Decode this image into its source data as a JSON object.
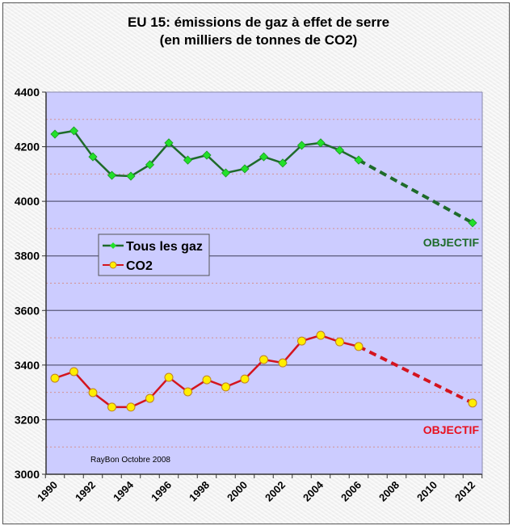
{
  "chart_data": {
    "type": "line",
    "title": "EU 15: émissions de gaz à effet de serre",
    "subtitle": "(en milliers de tonnes de CO2)",
    "xlabel": "",
    "ylabel": "",
    "xlim": [
      1990,
      2012
    ],
    "ylim": [
      3000,
      4400
    ],
    "y_ticks": [
      3000,
      3200,
      3400,
      3600,
      3800,
      4000,
      4200,
      4400
    ],
    "y_tick_labels": [
      "3000",
      "3200",
      "3400",
      "3600",
      "3800",
      "4000",
      "4200",
      "4400"
    ],
    "y_minor_gridlines": [
      3100,
      3300,
      3500,
      3700,
      3900,
      4100,
      4300
    ],
    "x_tick_labels": [
      "1990",
      "1992",
      "1994",
      "1996",
      "1998",
      "2000",
      "2002",
      "2004",
      "2006",
      "2008",
      "2010",
      "2012"
    ],
    "grid": true,
    "legend_position": "center-left",
    "series": [
      {
        "name": "Tous les gaz",
        "color": "#1e6b2a",
        "marker_color": "#22e02a",
        "marker": "diamond",
        "x": [
          1990,
          1991,
          1992,
          1993,
          1994,
          1995,
          1996,
          1997,
          1998,
          1999,
          2000,
          2001,
          2002,
          2003,
          2004,
          2005,
          2006
        ],
        "values": [
          4246,
          4258,
          4163,
          4095,
          4092,
          4134,
          4214,
          4151,
          4169,
          4104,
          4119,
          4163,
          4140,
          4205,
          4214,
          4187,
          4151
        ],
        "target": {
          "x": 2012,
          "value": 3921,
          "label": "OBJECTIF"
        }
      },
      {
        "name": "CO2",
        "color": "#d4141e",
        "marker_color": "#ffee00",
        "marker": "circle",
        "x": [
          1990,
          1991,
          1992,
          1993,
          1994,
          1995,
          1996,
          1997,
          1998,
          1999,
          2000,
          2001,
          2002,
          2003,
          2004,
          2005,
          2006
        ],
        "values": [
          3352,
          3376,
          3299,
          3246,
          3246,
          3278,
          3355,
          3302,
          3346,
          3320,
          3349,
          3420,
          3408,
          3488,
          3509,
          3485,
          3468
        ],
        "target": {
          "x": 2012,
          "value": 3261,
          "label": "OBJECTIF"
        }
      }
    ],
    "annotations": [
      "RayBon Octobre 2008"
    ]
  },
  "colors": {
    "plot_background": "#ccccff",
    "major_grid": "#5a5a7a",
    "minor_grid": "#d49090"
  }
}
